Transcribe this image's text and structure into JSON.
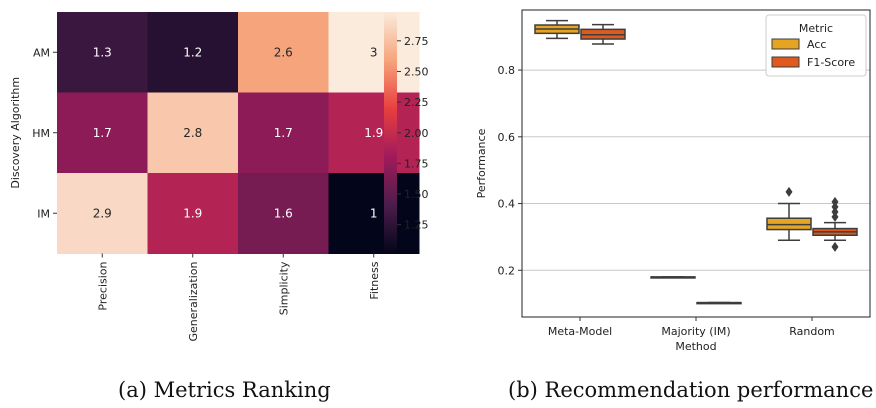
{
  "captions": {
    "a": "(a) Metrics Ranking",
    "b": "(b) Recommendation performance"
  },
  "chart_data": [
    {
      "type": "heatmap",
      "ylabel": "Discovery Algorithm",
      "rows": [
        "AM",
        "HM",
        "IM"
      ],
      "columns": [
        "Precision",
        "Generalization",
        "Simplicity",
        "Fitness"
      ],
      "values": [
        [
          1.3,
          1.2,
          2.6,
          3
        ],
        [
          1.7,
          2.8,
          1.7,
          1.9
        ],
        [
          2.9,
          1.9,
          1.6,
          1
        ]
      ],
      "colorbar": {
        "range": [
          1.0,
          3.0
        ],
        "ticks": [
          "1.25",
          "1.50",
          "1.75",
          "2.00",
          "2.25",
          "2.50",
          "2.75"
        ]
      },
      "colors": {
        "low": "#03051a",
        "high": "#faebdd"
      }
    },
    {
      "type": "box",
      "xlabel": "Method",
      "ylabel": "Performance",
      "categories": [
        "Meta-Model",
        "Majority (IM)",
        "Random"
      ],
      "ylim": [
        0.06,
        0.98
      ],
      "yticks": [
        "0.2",
        "0.4",
        "0.6",
        "0.8"
      ],
      "grid": "horizontal",
      "legend": {
        "title": "Metric",
        "position": "top-right"
      },
      "series": [
        {
          "name": "Acc",
          "color": "#e5a422",
          "boxes": [
            {
              "min": 0.895,
              "q1": 0.91,
              "median": 0.923,
              "q3": 0.935,
              "max": 0.948,
              "outliers": []
            },
            {
              "min": 0.18,
              "q1": 0.18,
              "median": 0.18,
              "q3": 0.18,
              "max": 0.18,
              "outliers": []
            },
            {
              "min": 0.29,
              "q1": 0.322,
              "median": 0.337,
              "q3": 0.356,
              "max": 0.4,
              "outliers": [
                0.435
              ]
            }
          ]
        },
        {
          "name": "F1-Score",
          "color": "#e05a1d",
          "boxes": [
            {
              "min": 0.878,
              "q1": 0.893,
              "median": 0.906,
              "q3": 0.922,
              "max": 0.936,
              "outliers": []
            },
            {
              "min": 0.103,
              "q1": 0.103,
              "median": 0.103,
              "q3": 0.103,
              "max": 0.103,
              "outliers": []
            },
            {
              "min": 0.29,
              "q1": 0.305,
              "median": 0.315,
              "q3": 0.325,
              "max": 0.343,
              "outliers": [
                0.27,
                0.36,
                0.375,
                0.39,
                0.405
              ]
            }
          ]
        }
      ]
    }
  ]
}
